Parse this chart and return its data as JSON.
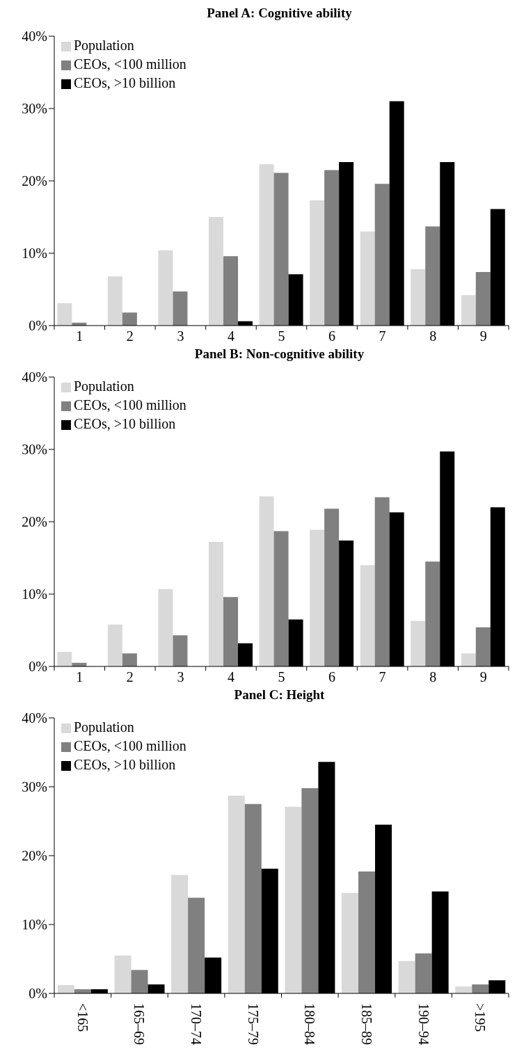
{
  "chart_data": [
    {
      "type": "bar",
      "title": "Panel A: Cognitive ability",
      "categories": [
        "1",
        "2",
        "3",
        "4",
        "5",
        "6",
        "7",
        "8",
        "9"
      ],
      "series": [
        {
          "name": "Population",
          "color": "#d9d9d9",
          "values": [
            3.1,
            6.8,
            10.4,
            15.0,
            22.3,
            17.3,
            13.0,
            7.8,
            4.2
          ]
        },
        {
          "name": "CEOs, <100 million",
          "color": "#808080",
          "values": [
            0.4,
            1.8,
            4.7,
            9.6,
            21.1,
            21.5,
            19.6,
            13.7,
            7.4
          ]
        },
        {
          "name": "CEOs, >10 billion",
          "color": "#000000",
          "values": [
            0,
            0,
            0,
            0.6,
            7.1,
            22.6,
            31.0,
            22.6,
            16.1
          ]
        }
      ],
      "ylim": [
        0,
        40
      ],
      "yticks": [
        {
          "value": 0,
          "label": "0%"
        },
        {
          "value": 10,
          "label": "10%"
        },
        {
          "value": 20,
          "label": "20%"
        },
        {
          "value": 30,
          "label": "30%"
        },
        {
          "value": 40,
          "label": "40%"
        }
      ],
      "legend": "top left",
      "grid": false
    },
    {
      "type": "bar",
      "title": "Panel B: Non-cognitive ability",
      "categories": [
        "1",
        "2",
        "3",
        "4",
        "5",
        "6",
        "7",
        "8",
        "9"
      ],
      "series": [
        {
          "name": "Population",
          "color": "#d9d9d9",
          "values": [
            2.0,
            5.8,
            10.7,
            17.2,
            23.5,
            18.9,
            14.0,
            6.3,
            1.8
          ]
        },
        {
          "name": "CEOs, <100 million",
          "color": "#808080",
          "values": [
            0.5,
            1.8,
            4.3,
            9.6,
            18.7,
            21.8,
            23.4,
            14.5,
            5.4
          ]
        },
        {
          "name": "CEOs, >10 billion",
          "color": "#000000",
          "values": [
            0,
            0,
            0,
            3.2,
            6.5,
            17.4,
            21.3,
            29.7,
            22.0
          ]
        }
      ],
      "ylim": [
        0,
        40
      ],
      "yticks": [
        {
          "value": 0,
          "label": "0%"
        },
        {
          "value": 10,
          "label": "10%"
        },
        {
          "value": 20,
          "label": "20%"
        },
        {
          "value": 30,
          "label": "30%"
        },
        {
          "value": 40,
          "label": "40%"
        }
      ],
      "legend": "top left",
      "grid": false
    },
    {
      "type": "bar",
      "title": "Panel C: Height",
      "categories": [
        "<165",
        "165–69",
        "170–74",
        "175–79",
        "180–84",
        "185–89",
        "190–94",
        ">195"
      ],
      "series": [
        {
          "name": "Population",
          "color": "#d9d9d9",
          "values": [
            1.2,
            5.5,
            17.2,
            28.7,
            27.1,
            14.6,
            4.7,
            1.0
          ]
        },
        {
          "name": "CEOs, <100 million",
          "color": "#808080",
          "values": [
            0.6,
            3.4,
            13.9,
            27.5,
            29.8,
            17.7,
            5.8,
            1.3
          ]
        },
        {
          "name": "CEOs, >10 billion",
          "color": "#000000",
          "values": [
            0.6,
            1.3,
            5.2,
            18.1,
            33.6,
            24.5,
            14.8,
            1.9
          ]
        }
      ],
      "ylim": [
        0,
        40
      ],
      "yticks": [
        {
          "value": 0,
          "label": "0%"
        },
        {
          "value": 10,
          "label": "10%"
        },
        {
          "value": 20,
          "label": "20%"
        },
        {
          "value": 30,
          "label": "30%"
        },
        {
          "value": 40,
          "label": "40%"
        }
      ],
      "legend": "top left",
      "grid": false
    }
  ]
}
